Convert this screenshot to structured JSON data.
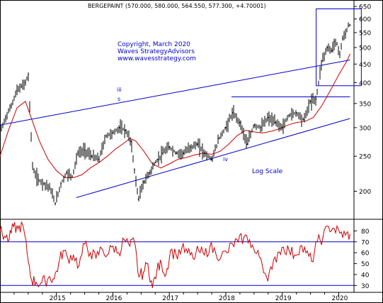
{
  "title": "BERGEPAINT (570.000, 580.000, 564.550, 577.300, +4.70001)",
  "annotation": {
    "copyright": "Copyright, March 2020",
    "brand": "Waves StrategyAdvisors",
    "url": "www.wavesstrategy.com",
    "scale": "Log Scale"
  },
  "wave_labels": {
    "iii": "iii",
    "s": "s",
    "iv": "iv"
  },
  "colors": {
    "price": "#000000",
    "moving_average": "#cc0000",
    "trendlines": "#0000cc",
    "rsi": "#cc0000",
    "text": "#0000cc"
  },
  "chart_data": [
    {
      "type": "line",
      "title": "BERGEPAINT (570.000, 580.000, 564.550, 577.300, +4.70001)",
      "scale": "log",
      "ylim": [
        168,
        665
      ],
      "y_ticks": [
        200,
        250,
        300,
        350,
        400,
        450,
        500,
        550,
        600,
        650
      ],
      "x_tick_labels": [
        "2015",
        "2016",
        "2017",
        "2018",
        "2019",
        "2020"
      ],
      "grid": false,
      "series": [
        {
          "kind": "price_bars",
          "x": [
            2014.0,
            2014.1,
            2014.2,
            2014.3,
            2014.38,
            2014.45,
            2014.5,
            2014.58,
            2014.68,
            2014.78,
            2014.88,
            2014.98,
            2015.08,
            2015.18,
            2015.28,
            2015.38,
            2015.5,
            2015.62,
            2015.75,
            2015.88,
            2016.0,
            2016.12,
            2016.22,
            2016.32,
            2016.38,
            2016.45,
            2016.55,
            2016.65,
            2016.75,
            2016.8,
            2016.88,
            2017.0,
            2017.12,
            2017.25,
            2017.38,
            2017.5,
            2017.62,
            2017.75,
            2017.88,
            2018.0,
            2018.12,
            2018.25,
            2018.38,
            2018.5,
            2018.62,
            2018.75,
            2018.88,
            2019.0,
            2019.12,
            2019.25,
            2019.38,
            2019.5,
            2019.6,
            2019.7,
            2019.8,
            2019.88,
            2019.92,
            2019.97,
            2020.02,
            2020.07,
            2020.12,
            2020.17,
            2020.2
          ],
          "values": [
            290,
            320,
            345,
            380,
            390,
            400,
            420,
            230,
            215,
            210,
            205,
            185,
            210,
            225,
            220,
            255,
            260,
            250,
            245,
            285,
            290,
            300,
            295,
            275,
            230,
            190,
            212,
            225,
            240,
            245,
            255,
            265,
            255,
            255,
            265,
            270,
            255,
            245,
            280,
            300,
            330,
            310,
            270,
            305,
            300,
            320,
            310,
            300,
            325,
            330,
            315,
            355,
            360,
            460,
            500,
            490,
            520,
            510,
            480,
            530,
            545,
            575,
            577.3
          ]
        },
        {
          "kind": "moving_average",
          "x": [
            2014.0,
            2014.15,
            2014.3,
            2014.45,
            2014.55,
            2014.7,
            2014.85,
            2015.0,
            2015.15,
            2015.3,
            2015.45,
            2015.6,
            2015.75,
            2015.9,
            2016.05,
            2016.2,
            2016.3,
            2016.4,
            2016.55,
            2016.7,
            2016.85,
            2017.0,
            2017.15,
            2017.3,
            2017.45,
            2017.6,
            2017.75,
            2017.9,
            2018.05,
            2018.2,
            2018.35,
            2018.5,
            2018.65,
            2018.8,
            2018.95,
            2019.1,
            2019.25,
            2019.4,
            2019.55,
            2019.7,
            2019.85,
            2020.0,
            2020.15,
            2020.2
          ],
          "values": [
            250,
            295,
            340,
            355,
            320,
            275,
            245,
            228,
            218,
            218,
            222,
            232,
            240,
            250,
            262,
            272,
            280,
            276,
            258,
            238,
            232,
            238,
            245,
            248,
            252,
            255,
            253,
            258,
            270,
            285,
            295,
            292,
            290,
            293,
            298,
            305,
            310,
            312,
            320,
            345,
            380,
            420,
            460,
            480
          ]
        }
      ],
      "trendlines": [
        {
          "name": "upper channel",
          "x": [
            2014.0,
            2020.2
          ],
          "values": [
            305,
            462
          ]
        },
        {
          "name": "lower channel",
          "x": [
            2015.35,
            2020.2
          ],
          "values": [
            192,
            318
          ]
        },
        {
          "name": "resistance",
          "x": [
            2018.1,
            2020.2
          ],
          "values": [
            365,
            365
          ]
        },
        {
          "name": "box",
          "x": [
            2019.6,
            2020.4
          ],
          "values": [
            392,
            640
          ]
        }
      ]
    },
    {
      "type": "line",
      "scale": "linear",
      "ylim": [
        25,
        90
      ],
      "y_ticks": [
        30,
        40,
        50,
        60,
        70,
        80
      ],
      "grid": false,
      "series": [
        {
          "kind": "oscillator",
          "x": [
            2014.0,
            2014.08,
            2014.16,
            2014.24,
            2014.32,
            2014.4,
            2014.48,
            2014.56,
            2014.64,
            2014.72,
            2014.8,
            2014.88,
            2014.96,
            2015.04,
            2015.12,
            2015.2,
            2015.3,
            2015.4,
            2015.5,
            2015.6,
            2015.7,
            2015.8,
            2015.9,
            2016.0,
            2016.1,
            2016.2,
            2016.3,
            2016.38,
            2016.46,
            2016.54,
            2016.62,
            2016.7,
            2016.78,
            2016.86,
            2016.94,
            2017.02,
            2017.12,
            2017.22,
            2017.32,
            2017.42,
            2017.52,
            2017.62,
            2017.72,
            2017.82,
            2017.92,
            2018.02,
            2018.12,
            2018.22,
            2018.32,
            2018.42,
            2018.52,
            2018.62,
            2018.72,
            2018.82,
            2018.92,
            2019.02,
            2019.12,
            2019.22,
            2019.32,
            2019.42,
            2019.52,
            2019.62,
            2019.72,
            2019.82,
            2019.92,
            2020.02,
            2020.12,
            2020.2
          ],
          "values": [
            80,
            75,
            72,
            84,
            82,
            86,
            60,
            35,
            33,
            32,
            34,
            38,
            36,
            50,
            62,
            55,
            58,
            48,
            68,
            60,
            55,
            64,
            58,
            66,
            60,
            72,
            66,
            70,
            38,
            42,
            50,
            28,
            44,
            50,
            40,
            62,
            58,
            64,
            60,
            55,
            62,
            58,
            66,
            60,
            57,
            60,
            68,
            70,
            74,
            72,
            60,
            55,
            38,
            45,
            60,
            65,
            62,
            58,
            66,
            60,
            52,
            70,
            74,
            84,
            82,
            78,
            76,
            77
          ]
        }
      ],
      "levels": [
        30,
        70
      ]
    }
  ]
}
